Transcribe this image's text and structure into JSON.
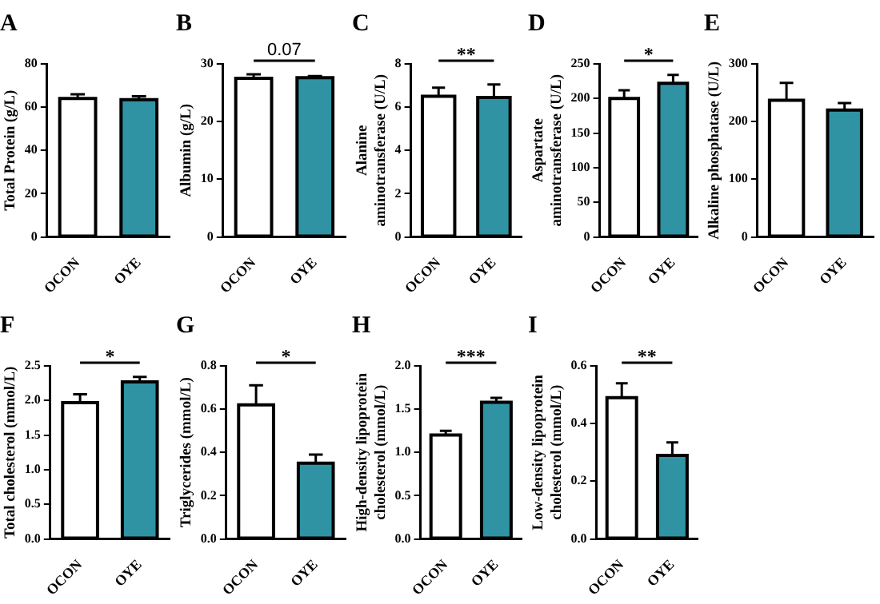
{
  "chart_data": [
    {
      "type": "bar",
      "title": "A",
      "categories": [
        "OCON",
        "OYE"
      ],
      "values": [
        64,
        63.5
      ],
      "errors": [
        2,
        1.5
      ],
      "colors": [
        "#ffffff",
        "#2f93a4"
      ],
      "ylabel": "Total Protein (g/L)",
      "ylim": [
        0,
        80
      ],
      "yticks": [
        0,
        20,
        40,
        60,
        80
      ]
    },
    {
      "type": "bar",
      "title": "B",
      "categories": [
        "OCON",
        "OYE"
      ],
      "values": [
        27.5,
        27.6
      ],
      "errors": [
        0.7,
        0.3
      ],
      "colors": [
        "#ffffff",
        "#2f93a4"
      ],
      "ylabel": "Albumin (g/L)",
      "ylim": [
        0,
        30
      ],
      "yticks": [
        0,
        10,
        20,
        30
      ],
      "annotations": [
        "0.07"
      ]
    },
    {
      "type": "bar",
      "title": "C",
      "categories": [
        "OCON",
        "OYE"
      ],
      "values": [
        6.5,
        6.45
      ],
      "errors": [
        0.4,
        0.6
      ],
      "colors": [
        "#ffffff",
        "#2f93a4"
      ],
      "ylabel": "Alanine aminotransferase (U/L)",
      "ylim": [
        0,
        8
      ],
      "yticks": [
        0,
        2,
        4,
        6,
        8
      ],
      "annotations": [
        "**"
      ]
    },
    {
      "type": "bar",
      "title": "D",
      "categories": [
        "OCON",
        "OYE"
      ],
      "values": [
        200,
        222
      ],
      "errors": [
        12,
        12
      ],
      "colors": [
        "#ffffff",
        "#2f93a4"
      ],
      "ylabel": "Aspartate aminotransferase (U/L)",
      "ylim": [
        0,
        250
      ],
      "yticks": [
        0,
        50,
        100,
        150,
        200,
        250
      ],
      "annotations": [
        "*"
      ]
    },
    {
      "type": "bar",
      "title": "E",
      "categories": [
        "OCON",
        "OYE"
      ],
      "values": [
        237,
        220
      ],
      "errors": [
        30,
        12
      ],
      "colors": [
        "#ffffff",
        "#2f93a4"
      ],
      "ylabel": "Alkaline phosphatase (U/L)",
      "ylim": [
        0,
        300
      ],
      "yticks": [
        0,
        100,
        200,
        300
      ]
    },
    {
      "type": "bar",
      "title": "F",
      "categories": [
        "OCON",
        "OYE"
      ],
      "values": [
        1.97,
        2.27
      ],
      "errors": [
        0.12,
        0.07
      ],
      "colors": [
        "#ffffff",
        "#2f93a4"
      ],
      "ylabel": "Total cholesterol (mmol/L)",
      "ylim": [
        0,
        2.5
      ],
      "yticks": [
        {
          "value": 0,
          "label": "0.0"
        },
        0.5,
        {
          "value": 1,
          "label": "1.0"
        },
        1.5,
        {
          "value": 2,
          "label": "2.0"
        },
        2.5
      ],
      "annotations": [
        "*"
      ]
    },
    {
      "type": "bar",
      "title": "G",
      "categories": [
        "OCON",
        "OYE"
      ],
      "values": [
        0.62,
        0.35
      ],
      "errors": [
        0.09,
        0.04
      ],
      "colors": [
        "#ffffff",
        "#2f93a4"
      ],
      "ylabel": "Triglycerides (mmol/L)",
      "ylim": [
        0,
        0.8
      ],
      "yticks": [
        {
          "value": 0,
          "label": "0.0"
        },
        0.2,
        0.4,
        0.6,
        0.8
      ],
      "annotations": [
        "*"
      ]
    },
    {
      "type": "bar",
      "title": "H",
      "categories": [
        "OCON",
        "OYE"
      ],
      "values": [
        1.2,
        1.58
      ],
      "errors": [
        0.05,
        0.05
      ],
      "colors": [
        "#ffffff",
        "#2f93a4"
      ],
      "ylabel": "High-density lipoprotein cholesterol (mmol/L)",
      "ylim": [
        0,
        2
      ],
      "yticks": [
        {
          "value": 0,
          "label": "0.0"
        },
        0.5,
        {
          "value": 1,
          "label": "1.0"
        },
        1.5,
        {
          "value": 2,
          "label": "2.0"
        }
      ],
      "annotations": [
        "***"
      ]
    },
    {
      "type": "bar",
      "title": "I",
      "categories": [
        "OCON",
        "OYE"
      ],
      "values": [
        0.49,
        0.29
      ],
      "errors": [
        0.05,
        0.045
      ],
      "colors": [
        "#ffffff",
        "#2f93a4"
      ],
      "ylabel": "Low-density lipoprotein cholesterol (mmol/L)",
      "ylim": [
        0,
        0.6
      ],
      "yticks": [
        {
          "value": 0,
          "label": "0.0"
        },
        0.2,
        0.4,
        0.6
      ],
      "annotations": [
        "**"
      ]
    }
  ]
}
